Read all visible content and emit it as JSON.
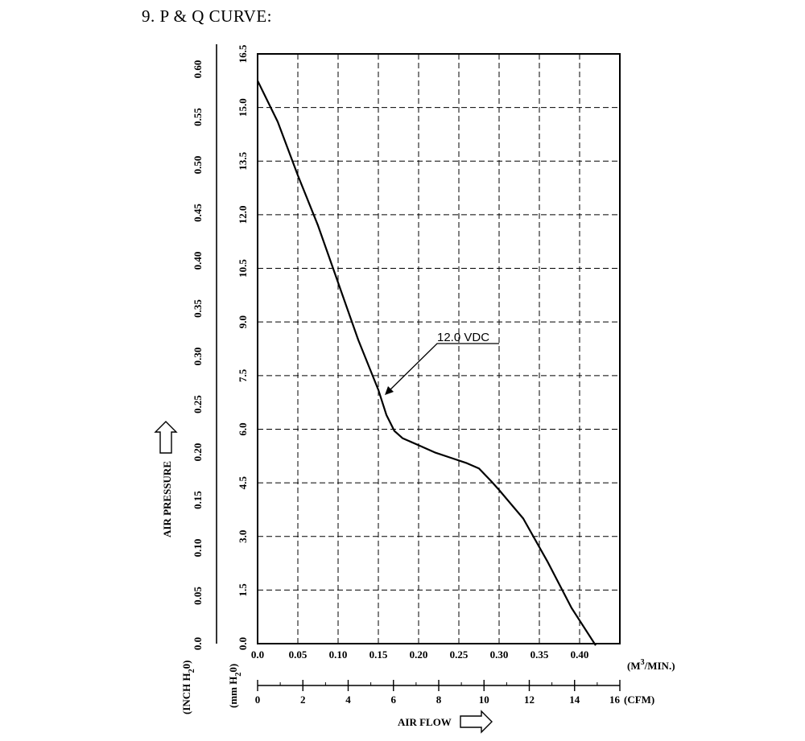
{
  "heading": "9. P & Q CURVE:",
  "chart_data": {
    "type": "line",
    "x_ticks_m3": [
      "0.0",
      "0.05",
      "0.10",
      "0.15",
      "0.20",
      "0.25",
      "0.30",
      "0.35",
      "0.40"
    ],
    "x_unit_m3": "(M",
    "x_unit_m3_sup": "3",
    "x_unit_m3_tail": "/MIN.)",
    "x_ticks_cfm": [
      "0",
      "2",
      "4",
      "6",
      "8",
      "10",
      "12",
      "14",
      "16"
    ],
    "x_unit_cfm": "(CFM)",
    "xlabel": "AIR FLOW",
    "y_ticks_mm": [
      "0.0",
      "1.5",
      "3.0",
      "4.5",
      "6.0",
      "7.5",
      "9.0",
      "10.5",
      "12.0",
      "13.5",
      "15.0",
      "16.5"
    ],
    "y_unit_mm": "(mm H",
    "y_unit_mm_sub": "2",
    "y_unit_mm_tail": "0)",
    "y_ticks_inch": [
      "0.0",
      "0.05",
      "0.10",
      "0.15",
      "0.20",
      "0.25",
      "0.30",
      "0.35",
      "0.40",
      "0.45",
      "0.50",
      "0.55",
      "0.60"
    ],
    "y_unit_inch": "(INCH H",
    "y_unit_inch_sub": "2",
    "y_unit_inch_tail": "0)",
    "ylabel": "AIR PRESSURE",
    "xlim_m3": [
      0,
      0.45
    ],
    "ylim_mm": [
      0,
      16.5
    ],
    "grid": true,
    "series": [
      {
        "name": "12.0 VDC",
        "x": [
          0.0,
          0.025,
          0.05,
          0.075,
          0.1,
          0.125,
          0.15,
          0.16,
          0.17,
          0.18,
          0.2,
          0.22,
          0.24,
          0.26,
          0.275,
          0.29,
          0.3,
          0.33,
          0.36,
          0.39,
          0.42
        ],
        "y": [
          15.75,
          14.6,
          13.1,
          11.7,
          10.1,
          8.5,
          7.1,
          6.4,
          5.95,
          5.75,
          5.55,
          5.35,
          5.2,
          5.05,
          4.9,
          4.55,
          4.3,
          3.5,
          2.3,
          1.0,
          -0.05
        ]
      }
    ]
  }
}
